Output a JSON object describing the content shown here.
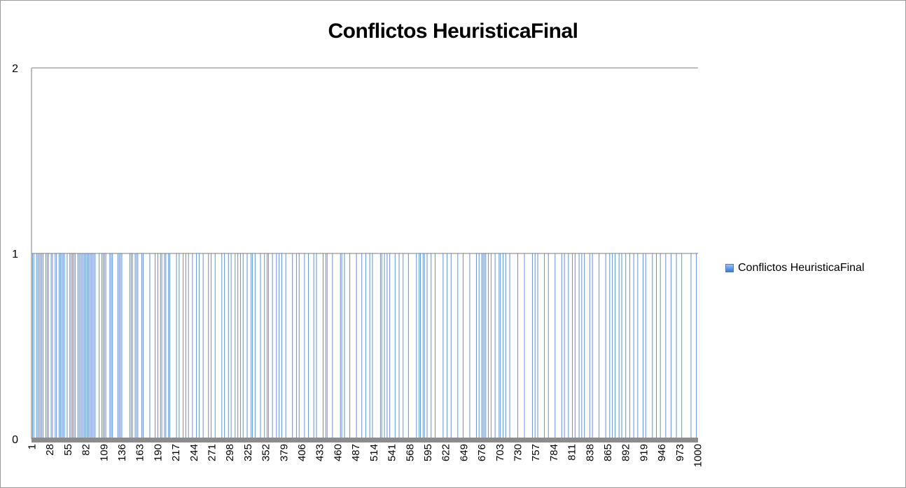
{
  "chart_data": {
    "type": "bar",
    "title": "Conflictos HeuristicaFinal",
    "xlabel": "",
    "ylabel": "",
    "ylim": [
      0,
      2
    ],
    "y_ticks": [
      "0",
      "1",
      "2"
    ],
    "x_range": [
      1,
      1000
    ],
    "x_tick_labels": [
      "1",
      "28",
      "55",
      "82",
      "109",
      "136",
      "163",
      "190",
      "217",
      "244",
      "271",
      "298",
      "325",
      "352",
      "379",
      "406",
      "433",
      "460",
      "487",
      "514",
      "541",
      "568",
      "595",
      "622",
      "649",
      "676",
      "703",
      "730",
      "757",
      "784",
      "811",
      "838",
      "865",
      "892",
      "919",
      "946",
      "973",
      "1000"
    ],
    "grid": true,
    "legend_position": "right",
    "series": [
      {
        "name": "Conflictos HeuristicaFinal",
        "color": "#4a7fc8",
        "note_values": "value is 1 at listed x, 0 elsewhere (x = 1..1000)",
        "x_with_value_1": [
          2,
          4,
          8,
          10,
          12,
          14,
          16,
          18,
          22,
          24,
          26,
          30,
          32,
          36,
          38,
          42,
          44,
          46,
          48,
          50,
          54,
          58,
          60,
          62,
          64,
          66,
          70,
          72,
          74,
          76,
          78,
          80,
          82,
          84,
          86,
          88,
          90,
          92,
          94,
          96,
          102,
          106,
          108,
          110,
          112,
          118,
          120,
          122,
          130,
          132,
          134,
          136,
          148,
          150,
          152,
          156,
          158,
          160,
          166,
          168,
          178,
          186,
          190,
          194,
          196,
          200,
          202,
          206,
          208,
          218,
          222,
          228,
          232,
          236,
          242,
          248,
          252,
          258,
          266,
          270,
          276,
          286,
          290,
          296,
          300,
          306,
          310,
          314,
          318,
          324,
          330,
          332,
          336,
          344,
          350,
          354,
          356,
          362,
          368,
          372,
          376,
          382,
          392,
          398,
          402,
          410,
          416,
          424,
          428,
          438,
          442,
          444,
          452,
          464,
          466,
          470,
          478,
          488,
          496,
          502,
          508,
          512,
          524,
          526,
          530,
          534,
          538,
          546,
          552,
          558,
          566,
          578,
          582,
          584,
          588,
          590,
          594,
          600,
          606,
          618,
          624,
          630,
          640,
          648,
          658,
          668,
          672,
          676,
          678,
          680,
          682,
          686,
          690,
          696,
          702,
          704,
          708,
          712,
          718,
          730,
          740,
          752,
          756,
          760,
          770,
          776,
          786,
          796,
          800,
          806,
          812,
          816,
          822,
          826,
          830,
          838,
          842,
          852,
          862,
          868,
          872,
          876,
          882,
          886,
          892,
          898,
          904,
          910,
          918,
          922,
          932,
          938,
          944,
          952,
          960,
          968,
          976,
          990,
          998
        ]
      }
    ]
  }
}
